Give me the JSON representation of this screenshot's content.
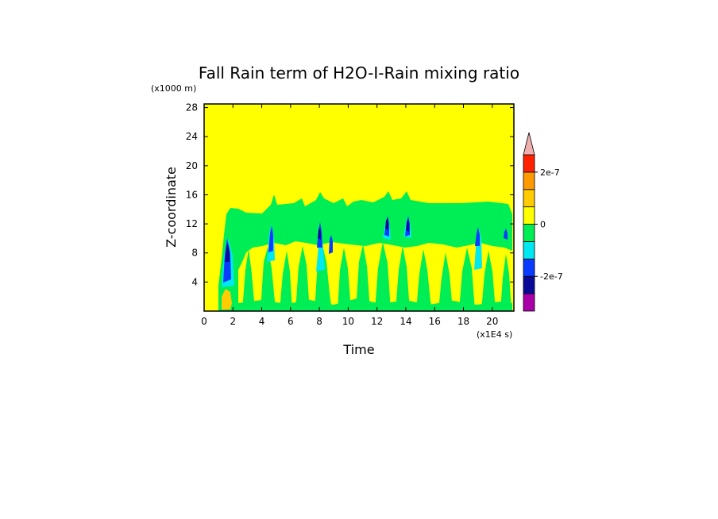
{
  "chart_data": {
    "type": "heatmap",
    "title": "Fall Rain term of H2O-I-Rain mixing ratio",
    "xlabel": "Time",
    "ylabel": "Z-coordinate",
    "x_unit": "(x1E4 s)",
    "y_unit": "(x1000 m)",
    "xlim": [
      0,
      21.5
    ],
    "ylim": [
      0,
      28.5
    ],
    "x_ticks": [
      0,
      2,
      4,
      6,
      8,
      10,
      12,
      14,
      16,
      18,
      20
    ],
    "y_ticks": [
      4,
      8,
      12,
      16,
      20,
      24,
      28
    ],
    "colorbar": {
      "levels": [
        {
          "color": "#aa00aa"
        },
        {
          "color": "#0a0a99"
        },
        {
          "color": "#0a3cff"
        },
        {
          "color": "#00e8f0"
        },
        {
          "color": "#00ee55"
        },
        {
          "color": "#ffff00"
        },
        {
          "color": "#ffcc00"
        },
        {
          "color": "#ff9900"
        },
        {
          "color": "#ff2200"
        }
      ],
      "over_color": "#f0b0b0",
      "tick_labels": [
        "2e-7",
        "0",
        "-2e-7"
      ]
    },
    "background_value_color": "#ffff00",
    "regions": [
      {
        "name": "green active layer",
        "color": "#00ee55",
        "x_range": [
          1.0,
          21.0
        ],
        "z_range": [
          0.5,
          16.5
        ]
      },
      {
        "name": "yellow lower layer",
        "color": "#ffff00",
        "x_range": [
          2.5,
          21.0
        ],
        "z_range": [
          0,
          9.5
        ]
      }
    ]
  }
}
